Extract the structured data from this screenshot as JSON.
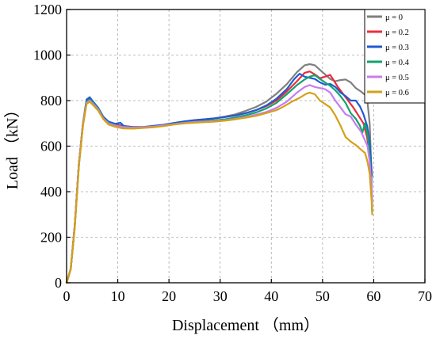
{
  "chart_data": {
    "type": "line",
    "title": "",
    "xlabel": "Displacement （mm）",
    "ylabel": "Load （kN）",
    "xlim": [
      0,
      70
    ],
    "ylim": [
      0,
      1200
    ],
    "x_ticks": [
      "0",
      "10",
      "20",
      "30",
      "40",
      "50",
      "60",
      "70"
    ],
    "y_ticks": [
      "0",
      "200",
      "400",
      "600",
      "800",
      "1000",
      "1200"
    ],
    "grid": true,
    "legend_position": "top-right",
    "series": [
      {
        "name": "μ = 0",
        "color": "#7f7f7f",
        "points": [
          [
            0,
            0
          ],
          [
            0.8,
            60
          ],
          [
            1.6,
            250
          ],
          [
            2.4,
            520
          ],
          [
            3.2,
            700
          ],
          [
            3.9,
            795
          ],
          [
            4.5,
            805
          ],
          [
            5.2,
            790
          ],
          [
            6.2,
            765
          ],
          [
            7.2,
            725
          ],
          [
            8.2,
            705
          ],
          [
            9.5,
            695
          ],
          [
            11,
            688
          ],
          [
            13,
            683
          ],
          [
            15,
            683
          ],
          [
            17,
            686
          ],
          [
            19,
            691
          ],
          [
            21,
            698
          ],
          [
            23,
            705
          ],
          [
            25,
            711
          ],
          [
            27,
            716
          ],
          [
            29,
            722
          ],
          [
            31,
            730
          ],
          [
            33,
            740
          ],
          [
            35,
            755
          ],
          [
            37,
            772
          ],
          [
            39,
            795
          ],
          [
            41,
            830
          ],
          [
            43,
            872
          ],
          [
            45,
            925
          ],
          [
            46.5,
            955
          ],
          [
            47.5,
            960
          ],
          [
            48.5,
            955
          ],
          [
            49.5,
            935
          ],
          [
            50.5,
            915
          ],
          [
            51.5,
            895
          ],
          [
            52.5,
            885
          ],
          [
            53.5,
            890
          ],
          [
            54.5,
            893
          ],
          [
            55.5,
            880
          ],
          [
            56.5,
            855
          ],
          [
            57.5,
            840
          ],
          [
            58.3,
            825
          ],
          [
            58.8,
            790
          ],
          [
            59.2,
            700
          ],
          [
            59.5,
            520
          ],
          [
            59.7,
            470
          ]
        ]
      },
      {
        "name": "μ = 0.2",
        "color": "#ee2b3a",
        "points": [
          [
            0,
            0
          ],
          [
            0.8,
            60
          ],
          [
            1.6,
            250
          ],
          [
            2.4,
            520
          ],
          [
            3.2,
            700
          ],
          [
            3.9,
            800
          ],
          [
            4.4,
            812
          ],
          [
            5,
            795
          ],
          [
            6,
            770
          ],
          [
            7,
            730
          ],
          [
            8,
            707
          ],
          [
            9.4,
            697
          ],
          [
            11,
            689
          ],
          [
            13,
            684
          ],
          [
            15,
            684
          ],
          [
            17,
            688
          ],
          [
            19,
            693
          ],
          [
            21,
            701
          ],
          [
            23,
            708
          ],
          [
            25,
            714
          ],
          [
            27,
            718
          ],
          [
            29,
            722
          ],
          [
            31,
            728
          ],
          [
            33,
            735
          ],
          [
            35,
            745
          ],
          [
            37,
            758
          ],
          [
            39,
            775
          ],
          [
            41,
            800
          ],
          [
            43,
            840
          ],
          [
            45,
            885
          ],
          [
            46.5,
            922
          ],
          [
            47.5,
            928
          ],
          [
            48.5,
            915
          ],
          [
            49.5,
            898
          ],
          [
            50.5,
            905
          ],
          [
            51.5,
            913
          ],
          [
            52.3,
            885
          ],
          [
            53,
            860
          ],
          [
            54,
            830
          ],
          [
            55,
            800
          ],
          [
            56,
            770
          ],
          [
            57,
            735
          ],
          [
            58,
            700
          ],
          [
            58.7,
            640
          ],
          [
            59.2,
            560
          ],
          [
            59.5,
            460
          ],
          [
            59.7,
            330
          ]
        ]
      },
      {
        "name": "μ = 0.3",
        "color": "#1f5bd1",
        "points": [
          [
            0,
            0
          ],
          [
            0.8,
            60
          ],
          [
            1.6,
            250
          ],
          [
            2.4,
            520
          ],
          [
            3.2,
            700
          ],
          [
            3.9,
            805
          ],
          [
            4.5,
            815
          ],
          [
            5.2,
            795
          ],
          [
            6.2,
            768
          ],
          [
            7.2,
            728
          ],
          [
            8.2,
            708
          ],
          [
            9.5,
            698
          ],
          [
            10.5,
            703
          ],
          [
            11.2,
            688
          ],
          [
            13,
            683
          ],
          [
            15,
            684
          ],
          [
            17,
            689
          ],
          [
            19,
            694
          ],
          [
            21,
            702
          ],
          [
            23,
            709
          ],
          [
            25,
            714
          ],
          [
            27,
            718
          ],
          [
            29,
            722
          ],
          [
            31,
            728
          ],
          [
            33,
            735
          ],
          [
            35,
            745
          ],
          [
            37,
            758
          ],
          [
            39,
            778
          ],
          [
            41,
            808
          ],
          [
            43,
            850
          ],
          [
            44.5,
            895
          ],
          [
            45.5,
            918
          ],
          [
            46.5,
            905
          ],
          [
            47.5,
            900
          ],
          [
            48.5,
            895
          ],
          [
            49.5,
            880
          ],
          [
            50.5,
            870
          ],
          [
            51.5,
            873
          ],
          [
            52.5,
            860
          ],
          [
            53.5,
            835
          ],
          [
            54.5,
            820
          ],
          [
            55.5,
            800
          ],
          [
            56.5,
            800
          ],
          [
            57.3,
            775
          ],
          [
            58,
            740
          ],
          [
            58.7,
            690
          ],
          [
            59.2,
            620
          ],
          [
            59.5,
            520
          ],
          [
            59.7,
            310
          ]
        ]
      },
      {
        "name": "μ = 0.4",
        "color": "#12a36e",
        "points": [
          [
            0,
            0
          ],
          [
            0.8,
            60
          ],
          [
            1.6,
            250
          ],
          [
            2.4,
            520
          ],
          [
            3.2,
            700
          ],
          [
            3.9,
            795
          ],
          [
            4.5,
            805
          ],
          [
            5.2,
            790
          ],
          [
            6.2,
            765
          ],
          [
            7.2,
            722
          ],
          [
            8.2,
            702
          ],
          [
            9.5,
            692
          ],
          [
            11,
            686
          ],
          [
            13,
            682
          ],
          [
            15,
            683
          ],
          [
            17,
            686
          ],
          [
            19,
            691
          ],
          [
            21,
            697
          ],
          [
            23,
            703
          ],
          [
            25,
            707
          ],
          [
            27,
            710
          ],
          [
            29,
            713
          ],
          [
            31,
            718
          ],
          [
            33,
            726
          ],
          [
            35,
            736
          ],
          [
            37,
            748
          ],
          [
            39,
            765
          ],
          [
            41,
            790
          ],
          [
            43,
            828
          ],
          [
            45,
            868
          ],
          [
            46.5,
            893
          ],
          [
            47.5,
            905
          ],
          [
            48.5,
            912
          ],
          [
            49.5,
            895
          ],
          [
            50.5,
            880
          ],
          [
            51.5,
            865
          ],
          [
            52.5,
            845
          ],
          [
            53.5,
            820
          ],
          [
            54.5,
            790
          ],
          [
            55.5,
            745
          ],
          [
            56.5,
            720
          ],
          [
            57.3,
            690
          ],
          [
            57.8,
            660
          ],
          [
            58.3,
            700
          ],
          [
            58.8,
            650
          ],
          [
            59.2,
            560
          ],
          [
            59.6,
            390
          ],
          [
            59.7,
            320
          ]
        ]
      },
      {
        "name": "μ = 0.5",
        "color": "#c77cf0",
        "points": [
          [
            0,
            0
          ],
          [
            0.8,
            60
          ],
          [
            1.6,
            250
          ],
          [
            2.4,
            520
          ],
          [
            3.2,
            700
          ],
          [
            3.9,
            790
          ],
          [
            4.5,
            800
          ],
          [
            5.2,
            785
          ],
          [
            6.2,
            760
          ],
          [
            7.2,
            720
          ],
          [
            8.2,
            700
          ],
          [
            9.5,
            690
          ],
          [
            11,
            684
          ],
          [
            13,
            681
          ],
          [
            15,
            683
          ],
          [
            17,
            686
          ],
          [
            19,
            691
          ],
          [
            21,
            697
          ],
          [
            23,
            702
          ],
          [
            25,
            706
          ],
          [
            27,
            708
          ],
          [
            29,
            710
          ],
          [
            31,
            714
          ],
          [
            33,
            720
          ],
          [
            35,
            728
          ],
          [
            37,
            738
          ],
          [
            39,
            750
          ],
          [
            41,
            768
          ],
          [
            43,
            795
          ],
          [
            45,
            835
          ],
          [
            46.5,
            860
          ],
          [
            47.5,
            868
          ],
          [
            48.5,
            860
          ],
          [
            49.5,
            855
          ],
          [
            50.5,
            850
          ],
          [
            51.5,
            835
          ],
          [
            52.5,
            800
          ],
          [
            53.5,
            770
          ],
          [
            54.5,
            740
          ],
          [
            55.5,
            730
          ],
          [
            56.5,
            695
          ],
          [
            57.5,
            665
          ],
          [
            58.2,
            630
          ],
          [
            58.8,
            600
          ],
          [
            59.2,
            530
          ],
          [
            59.6,
            420
          ],
          [
            59.7,
            330
          ]
        ]
      },
      {
        "name": "μ = 0.6",
        "color": "#d4a017",
        "points": [
          [
            0,
            0
          ],
          [
            0.8,
            60
          ],
          [
            1.6,
            240
          ],
          [
            2.4,
            510
          ],
          [
            3.2,
            690
          ],
          [
            3.9,
            785
          ],
          [
            4.5,
            795
          ],
          [
            5.2,
            780
          ],
          [
            6.2,
            755
          ],
          [
            7.2,
            718
          ],
          [
            8.2,
            695
          ],
          [
            9.5,
            685
          ],
          [
            11,
            678
          ],
          [
            13,
            677
          ],
          [
            15,
            680
          ],
          [
            17,
            683
          ],
          [
            19,
            688
          ],
          [
            21,
            695
          ],
          [
            23,
            700
          ],
          [
            25,
            703
          ],
          [
            27,
            705
          ],
          [
            29,
            708
          ],
          [
            31,
            712
          ],
          [
            33,
            718
          ],
          [
            35,
            725
          ],
          [
            37,
            733
          ],
          [
            39,
            745
          ],
          [
            41,
            758
          ],
          [
            42.5,
            775
          ],
          [
            44,
            795
          ],
          [
            45.5,
            812
          ],
          [
            46.8,
            830
          ],
          [
            47.5,
            835
          ],
          [
            48.5,
            828
          ],
          [
            49.5,
            800
          ],
          [
            50.5,
            785
          ],
          [
            51.5,
            770
          ],
          [
            52.5,
            735
          ],
          [
            53.5,
            690
          ],
          [
            54.5,
            640
          ],
          [
            55.5,
            620
          ],
          [
            56.5,
            605
          ],
          [
            57.5,
            585
          ],
          [
            58.3,
            570
          ],
          [
            58.8,
            530
          ],
          [
            59.2,
            480
          ],
          [
            59.6,
            360
          ],
          [
            59.7,
            300
          ]
        ]
      }
    ]
  }
}
